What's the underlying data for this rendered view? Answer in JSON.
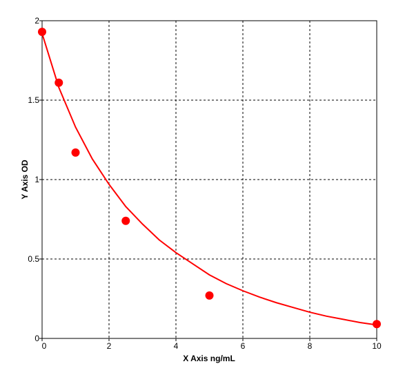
{
  "chart_data": {
    "type": "scatter",
    "xlabel": "X Axis ng/mL",
    "ylabel": "Y Axis OD",
    "xlim": [
      0,
      10
    ],
    "ylim": [
      0,
      2
    ],
    "xticks": [
      0,
      2,
      4,
      6,
      8,
      10
    ],
    "yticks": [
      0,
      0.5,
      1,
      1.5,
      2
    ],
    "xtick_labels": [
      "0",
      "2",
      "4",
      "6",
      "8",
      "10"
    ],
    "ytick_labels": [
      "0",
      "0.5",
      "1",
      "1.5",
      "2"
    ],
    "grid": true,
    "points": {
      "x": [
        0,
        0.5,
        1,
        2.5,
        5,
        10
      ],
      "y": [
        1.93,
        1.61,
        1.17,
        0.74,
        0.27,
        0.09
      ]
    },
    "fit_curve": {
      "x": [
        0,
        0.5,
        1,
        1.5,
        2,
        2.5,
        3,
        3.5,
        4,
        4.5,
        5,
        5.5,
        6,
        6.5,
        7,
        7.5,
        8,
        8.5,
        9,
        9.5,
        10
      ],
      "y": [
        1.92,
        1.58,
        1.33,
        1.13,
        0.97,
        0.83,
        0.72,
        0.62,
        0.54,
        0.47,
        0.4,
        0.345,
        0.3,
        0.26,
        0.225,
        0.195,
        0.165,
        0.14,
        0.12,
        0.1,
        0.085
      ]
    },
    "colors": {
      "series": "#ff0000",
      "grid": "#000000",
      "frame": "#000000"
    }
  }
}
